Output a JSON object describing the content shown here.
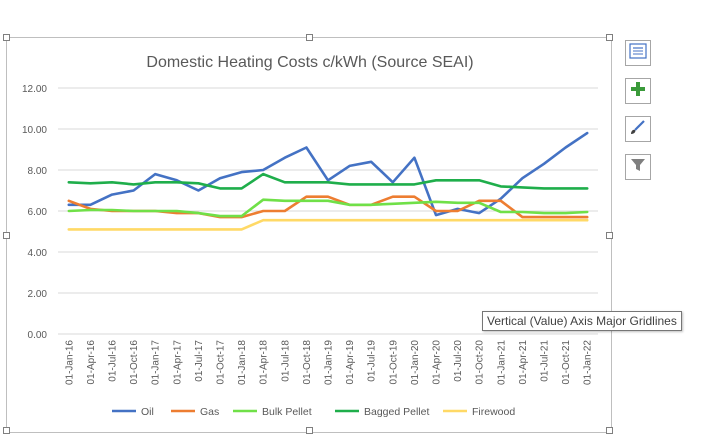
{
  "tooltip": "Vertical (Value) Axis Major Gridlines",
  "side_buttons": [
    {
      "name": "chart-layout-icon"
    },
    {
      "name": "chart-elements-plus-icon"
    },
    {
      "name": "chart-styles-brush-icon"
    },
    {
      "name": "chart-filters-funnel-icon"
    }
  ],
  "colors": {
    "oil": "#4472c4",
    "gas": "#ed7d31",
    "bulk_pellet": "#70e048",
    "bagged_pellet": "#1fae4b",
    "firewood": "#ffd966",
    "grid": "#d9d9d9",
    "text": "#595959"
  },
  "chart_data": {
    "type": "line",
    "title": "Domestic Heating Costs c/kWh (Source SEAI)",
    "xlabel": "",
    "ylabel": "",
    "ylim": [
      0,
      12
    ],
    "yticks": [
      "0.00",
      "2.00",
      "4.00",
      "6.00",
      "8.00",
      "10.00",
      "12.00"
    ],
    "grid": true,
    "legend_position": "bottom",
    "categories": [
      "01-Jan-16",
      "01-Apr-16",
      "01-Jul-16",
      "01-Oct-16",
      "01-Jan-17",
      "01-Apr-17",
      "01-Jul-17",
      "01-Oct-17",
      "01-Jan-18",
      "01-Apr-18",
      "01-Jul-18",
      "01-Oct-18",
      "01-Jan-19",
      "01-Apr-19",
      "01-Jul-19",
      "01-Oct-19",
      "01-Jan-20",
      "01-Apr-20",
      "01-Jul-20",
      "01-Oct-20",
      "01-Jan-21",
      "01-Apr-21",
      "01-Jul-21",
      "01-Oct-21",
      "01-Jan-22"
    ],
    "series": [
      {
        "name": "Oil",
        "color_key": "oil",
        "values": [
          6.3,
          6.3,
          6.8,
          7.0,
          7.8,
          7.5,
          7.0,
          7.6,
          7.9,
          8.0,
          8.6,
          9.1,
          7.5,
          8.2,
          8.4,
          7.4,
          8.6,
          5.8,
          6.1,
          5.9,
          6.6,
          7.6,
          8.3,
          9.1,
          9.8
        ]
      },
      {
        "name": "Gas",
        "color_key": "gas",
        "values": [
          6.5,
          6.1,
          6.0,
          6.0,
          6.0,
          5.9,
          5.9,
          5.7,
          5.7,
          6.0,
          6.0,
          6.7,
          6.7,
          6.3,
          6.3,
          6.7,
          6.7,
          6.0,
          6.0,
          6.5,
          6.5,
          5.7,
          5.7,
          5.7,
          5.7
        ]
      },
      {
        "name": "Bulk Pellet",
        "color_key": "bulk_pellet",
        "values": [
          6.0,
          6.05,
          6.05,
          6.0,
          6.0,
          6.0,
          5.9,
          5.75,
          5.75,
          6.55,
          6.5,
          6.5,
          6.5,
          6.3,
          6.3,
          6.35,
          6.4,
          6.45,
          6.4,
          6.4,
          5.95,
          5.95,
          5.9,
          5.9,
          5.95
        ]
      },
      {
        "name": "Bagged Pellet",
        "color_key": "bagged_pellet",
        "values": [
          7.4,
          7.35,
          7.4,
          7.3,
          7.4,
          7.4,
          7.35,
          7.1,
          7.1,
          7.8,
          7.4,
          7.4,
          7.4,
          7.3,
          7.3,
          7.3,
          7.3,
          7.5,
          7.5,
          7.5,
          7.2,
          7.15,
          7.1,
          7.1,
          7.1
        ]
      },
      {
        "name": "Firewood",
        "color_key": "firewood",
        "values": [
          5.1,
          5.1,
          5.1,
          5.1,
          5.1,
          5.1,
          5.1,
          5.1,
          5.1,
          5.55,
          5.55,
          5.55,
          5.55,
          5.55,
          5.55,
          5.55,
          5.55,
          5.55,
          5.55,
          5.55,
          5.55,
          5.55,
          5.55,
          5.55,
          5.55
        ]
      }
    ]
  }
}
